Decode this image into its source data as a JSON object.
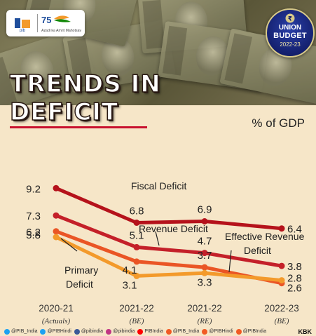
{
  "header": {
    "pib_logo_text": "pib",
    "azadi_text": "Azadi ka Amrit Mahotsav",
    "azadi_number": "75",
    "badge": {
      "line1": "UNION",
      "line2": "BUDGET",
      "year": "2022-23"
    },
    "title_line1": "TRENDS IN",
    "title_line2": "DEFICIT"
  },
  "unit_label": "% of GDP",
  "colors": {
    "fiscal": "#b5121b",
    "revenue": "#c42029",
    "effective_revenue": "#ea5525",
    "primary": "#f39a2b",
    "background": "#f6e6c8"
  },
  "chart_data": {
    "type": "line",
    "categories": [
      "2020-21",
      "2021-22",
      "2021-22",
      "2022-23"
    ],
    "category_sublabels": [
      "(Actuals)",
      "(BE)",
      "(RE)",
      "(BE)"
    ],
    "series": [
      {
        "name": "Fiscal Deficit",
        "values": [
          9.2,
          6.8,
          6.9,
          6.4
        ],
        "color": "#b5121b"
      },
      {
        "name": "Revenue Deficit",
        "values": [
          7.3,
          5.1,
          4.7,
          3.8
        ],
        "color": "#c42029"
      },
      {
        "name": "Effective Revenue Deficit",
        "values": [
          6.2,
          4.1,
          3.7,
          2.6
        ],
        "color": "#ea5525"
      },
      {
        "name": "Primary Deficit",
        "values": [
          5.8,
          3.1,
          3.3,
          2.8
        ],
        "color": "#f39a2b"
      }
    ],
    "annotations": {
      "fiscal": "Fiscal Deficit",
      "revenue": "Revenue Deficit",
      "effective_line1": "Effective Revenue",
      "effective_line2": "Deficit",
      "primary_line1": "Primary",
      "primary_line2": "Deficit"
    },
    "ylim": [
      2.0,
      9.7
    ]
  },
  "footer": {
    "handles": [
      {
        "text": "@PIB_India",
        "color": "#1da1f2"
      },
      {
        "text": "@PIBHindi",
        "color": "#1da1f2"
      },
      {
        "text": "@pibindia",
        "color": "#3b5998"
      },
      {
        "text": "@pibindia",
        "color": "#c13584"
      },
      {
        "text": "PIBIndia",
        "color": "#ff0000"
      },
      {
        "text": "@PIB_India",
        "color": "#f15a24"
      },
      {
        "text": "@PIBHindi",
        "color": "#f15a24"
      },
      {
        "text": "@PIBIndia",
        "color": "#f15a24"
      }
    ],
    "credit": "KBK"
  }
}
